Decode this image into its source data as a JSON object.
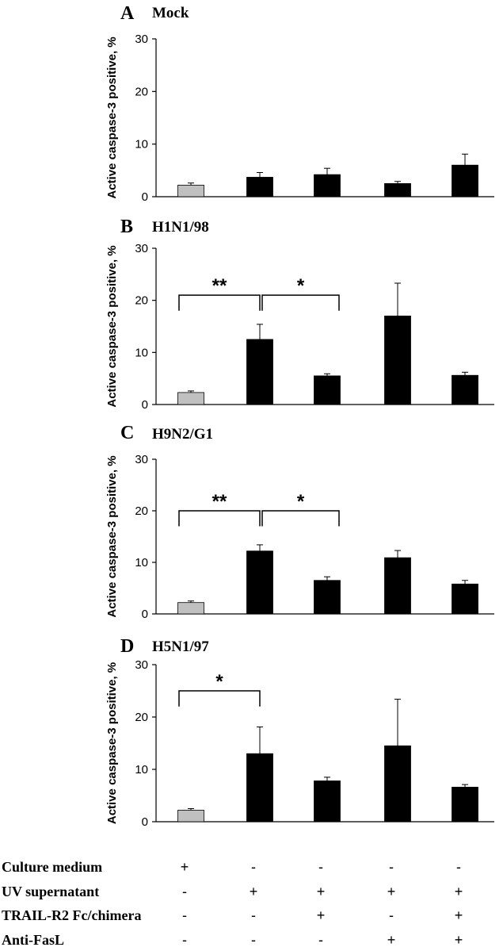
{
  "chart_data": [
    {
      "type": "bar",
      "panel": "A",
      "title": "Mock",
      "ylabel": "Active caspase-3 positive, %",
      "ylim": [
        0,
        30
      ],
      "yticks": [
        "0",
        "10",
        "20",
        "30"
      ],
      "values": [
        2.2,
        3.7,
        4.2,
        2.5,
        6.0
      ],
      "errors": [
        0.4,
        0.9,
        1.2,
        0.4,
        2.1
      ],
      "colors": [
        "#c0c0c0",
        "#000000",
        "#000000",
        "#000000",
        "#000000"
      ],
      "significance": []
    },
    {
      "type": "bar",
      "panel": "B",
      "title": "H1N1/98",
      "ylabel": "Active caspase-3 positive, %",
      "ylim": [
        0,
        30
      ],
      "yticks": [
        "0",
        "10",
        "20",
        "30"
      ],
      "values": [
        2.3,
        12.5,
        5.5,
        17.0,
        5.6
      ],
      "errors": [
        0.3,
        2.9,
        0.4,
        6.3,
        0.6
      ],
      "colors": [
        "#c0c0c0",
        "#000000",
        "#000000",
        "#000000",
        "#000000"
      ],
      "significance": [
        {
          "from": 0,
          "to": 1,
          "label": "**",
          "level": 21
        },
        {
          "from": 1,
          "to": 2,
          "label": "*",
          "level": 21
        }
      ]
    },
    {
      "type": "bar",
      "panel": "C",
      "title": "H9N2/G1",
      "ylabel": "Active caspase-3 positive, %",
      "ylim": [
        0,
        30
      ],
      "yticks": [
        "0",
        "10",
        "20",
        "30"
      ],
      "values": [
        2.2,
        12.2,
        6.5,
        10.9,
        5.8
      ],
      "errors": [
        0.3,
        1.2,
        0.7,
        1.4,
        0.7
      ],
      "colors": [
        "#c0c0c0",
        "#000000",
        "#000000",
        "#000000",
        "#000000"
      ],
      "significance": [
        {
          "from": 0,
          "to": 1,
          "label": "**",
          "level": 20
        },
        {
          "from": 1,
          "to": 2,
          "label": "*",
          "level": 20
        }
      ]
    },
    {
      "type": "bar",
      "panel": "D",
      "title": "H5N1/97",
      "ylabel": "Active caspase-3 positive, %",
      "ylim": [
        0,
        30
      ],
      "yticks": [
        "0",
        "10",
        "20",
        "30"
      ],
      "values": [
        2.2,
        13.0,
        7.8,
        14.5,
        6.6
      ],
      "errors": [
        0.3,
        5.1,
        0.7,
        8.9,
        0.5
      ],
      "colors": [
        "#c0c0c0",
        "#000000",
        "#000000",
        "#000000",
        "#000000"
      ],
      "significance": [
        {
          "from": 0,
          "to": 1,
          "label": "*",
          "level": 25
        }
      ]
    }
  ],
  "conditions_table": {
    "rows": [
      {
        "label": "Culture medium",
        "marks": [
          "+",
          "-",
          "-",
          "-",
          "-"
        ]
      },
      {
        "label": "UV  supernatant",
        "marks": [
          "-",
          "+",
          "+",
          "+",
          "+"
        ]
      },
      {
        "label": "TRAIL-R2 Fc/chimera",
        "marks": [
          "-",
          "-",
          "+",
          "-",
          "+"
        ]
      },
      {
        "label": "Anti-FasL",
        "marks": [
          "-",
          "-",
          "-",
          "+",
          "+"
        ]
      }
    ]
  }
}
